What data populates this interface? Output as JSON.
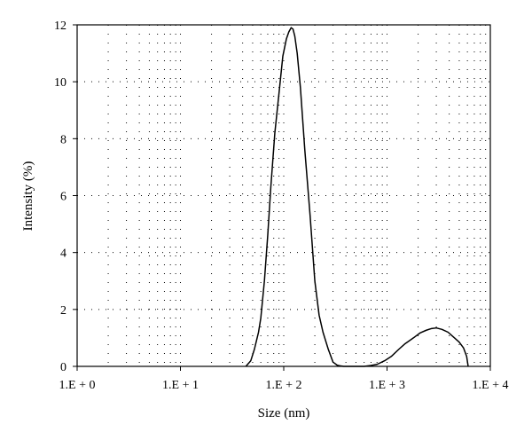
{
  "chart_data": {
    "type": "line",
    "title": "",
    "xlabel": "Size (nm)",
    "ylabel": "Intensity (%)",
    "x_scale": "log",
    "xlim": [
      1,
      10000
    ],
    "ylim": [
      0,
      12
    ],
    "grid": "dotted minor and major log grid",
    "x_tick_values": [
      1,
      10,
      100,
      1000,
      10000
    ],
    "x_tick_labels": [
      "1.E + 0",
      "1.E + 1",
      "1.E + 2",
      "1.E + 3",
      "1.E + 4"
    ],
    "y_ticks": [
      0,
      2,
      4,
      6,
      8,
      10,
      12
    ],
    "series": [
      {
        "color": "#000000",
        "x": [
          43,
          48,
          52,
          57,
          60,
          65,
          70,
          75,
          82,
          90,
          98,
          106,
          112,
          118,
          123,
          128,
          135,
          145,
          160,
          180,
          200,
          220,
          240,
          270,
          300,
          330,
          350,
          380,
          420,
          500,
          600,
          700,
          800,
          950,
          1100,
          1300,
          1500,
          1800,
          2100,
          2400,
          2700,
          3000,
          3400,
          3900,
          4500,
          5000,
          5500,
          5900,
          6100
        ],
        "y": [
          0,
          0.2,
          0.6,
          1.2,
          1.7,
          3.0,
          4.6,
          6.3,
          8.2,
          9.6,
          10.9,
          11.5,
          11.75,
          11.9,
          11.85,
          11.6,
          11.0,
          9.8,
          7.6,
          5.3,
          3.0,
          1.8,
          1.2,
          0.6,
          0.15,
          0.04,
          0.02,
          0,
          0,
          0,
          0,
          0.03,
          0.07,
          0.2,
          0.35,
          0.6,
          0.8,
          1.0,
          1.18,
          1.27,
          1.33,
          1.35,
          1.3,
          1.2,
          1.0,
          0.85,
          0.65,
          0.35,
          0
        ]
      }
    ]
  }
}
